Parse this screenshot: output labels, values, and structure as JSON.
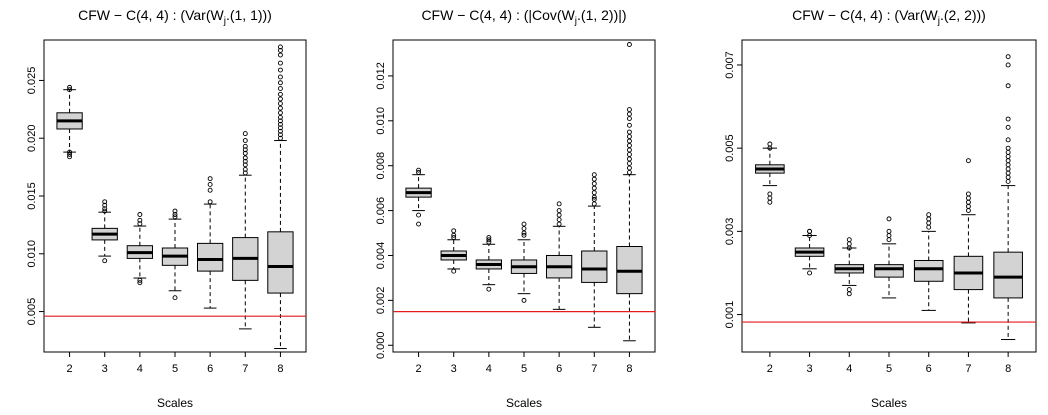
{
  "chart_data": [
    {
      "type": "boxplot",
      "title_parts": [
        "CFW − C(4, 4) : (Var(W",
        "j",
        ".",
        "(1, 1)))"
      ],
      "xlabel": "Scales",
      "categories": [
        "2",
        "3",
        "4",
        "5",
        "6",
        "7",
        "8"
      ],
      "ylim": [
        0.0015,
        0.0285
      ],
      "yticks": [
        0.005,
        0.01,
        0.015,
        0.02,
        0.025
      ],
      "ytick_labels": [
        "0.005",
        "0.010",
        "0.015",
        "0.020",
        "0.025"
      ],
      "reference_line": {
        "y": 0.0046,
        "color": "#e41a1c"
      },
      "boxes": [
        {
          "min": 0.0188,
          "q1": 0.0208,
          "median": 0.0215,
          "q3": 0.0222,
          "max": 0.0242,
          "outliers": [
            0.0184,
            0.0186,
            0.0188,
            0.0242,
            0.0244
          ]
        },
        {
          "min": 0.0098,
          "q1": 0.0112,
          "median": 0.0117,
          "q3": 0.0122,
          "max": 0.0136,
          "outliers": [
            0.0094,
            0.0137,
            0.0139,
            0.0142,
            0.0145
          ]
        },
        {
          "min": 0.0079,
          "q1": 0.0096,
          "median": 0.0101,
          "q3": 0.0107,
          "max": 0.0124,
          "outliers": [
            0.0075,
            0.0077,
            0.0126,
            0.0129,
            0.0134
          ]
        },
        {
          "min": 0.0068,
          "q1": 0.009,
          "median": 0.0098,
          "q3": 0.0105,
          "max": 0.013,
          "outliers": [
            0.0062,
            0.0132,
            0.0134,
            0.0137
          ]
        },
        {
          "min": 0.0053,
          "q1": 0.0085,
          "median": 0.0095,
          "q3": 0.0109,
          "max": 0.0143,
          "outliers": [
            0.0145,
            0.0155,
            0.016,
            0.0165
          ]
        },
        {
          "min": 0.0035,
          "q1": 0.0077,
          "median": 0.0096,
          "q3": 0.0114,
          "max": 0.0168,
          "outliers": [
            0.017,
            0.0173,
            0.0177,
            0.018,
            0.0183,
            0.0187,
            0.019,
            0.0193,
            0.0198,
            0.0204
          ]
        },
        {
          "min": 0.0018,
          "q1": 0.0066,
          "median": 0.0089,
          "q3": 0.0119,
          "max": 0.0198,
          "outliers": [
            0.02,
            0.0203,
            0.0206,
            0.0209,
            0.0212,
            0.0215,
            0.0218,
            0.0222,
            0.0226,
            0.023,
            0.0234,
            0.0238,
            0.0243,
            0.0248,
            0.0253,
            0.0259,
            0.0265,
            0.0272,
            0.0276,
            0.0279
          ]
        }
      ]
    },
    {
      "type": "boxplot",
      "title_parts": [
        "CFW − C(4, 4) : (|Cov(W",
        "j",
        ".",
        "(1, 2))|)"
      ],
      "xlabel": "Scales",
      "categories": [
        "2",
        "3",
        "4",
        "5",
        "6",
        "7",
        "8"
      ],
      "ylim": [
        -0.0003,
        0.0136
      ],
      "yticks": [
        0.0,
        0.002,
        0.004,
        0.006,
        0.008,
        0.01,
        0.012
      ],
      "ytick_labels": [
        "0.000",
        "0.002",
        "0.004",
        "0.006",
        "0.008",
        "0.010",
        "0.012"
      ],
      "reference_line": {
        "y": 0.0015,
        "color": "#e41a1c"
      },
      "boxes": [
        {
          "min": 0.006,
          "q1": 0.0066,
          "median": 0.0068,
          "q3": 0.007,
          "max": 0.0076,
          "outliers": [
            0.0054,
            0.0058,
            0.0077,
            0.0078
          ]
        },
        {
          "min": 0.0034,
          "q1": 0.0038,
          "median": 0.004,
          "q3": 0.0042,
          "max": 0.0047,
          "outliers": [
            0.0033,
            0.0048,
            0.0049,
            0.0051
          ]
        },
        {
          "min": 0.0027,
          "q1": 0.0034,
          "median": 0.0036,
          "q3": 0.0038,
          "max": 0.0045,
          "outliers": [
            0.0025,
            0.0046,
            0.0047,
            0.0048
          ]
        },
        {
          "min": 0.0023,
          "q1": 0.0032,
          "median": 0.0035,
          "q3": 0.0038,
          "max": 0.0047,
          "outliers": [
            0.002,
            0.0049,
            0.005,
            0.0052,
            0.0054
          ]
        },
        {
          "min": 0.0016,
          "q1": 0.003,
          "median": 0.0035,
          "q3": 0.004,
          "max": 0.0053,
          "outliers": [
            0.0054,
            0.0056,
            0.0058,
            0.006,
            0.0063
          ]
        },
        {
          "min": 0.0008,
          "q1": 0.0028,
          "median": 0.0034,
          "q3": 0.0042,
          "max": 0.0062,
          "outliers": [
            0.0063,
            0.0065,
            0.0066,
            0.0068,
            0.007,
            0.0072,
            0.0074,
            0.0076
          ]
        },
        {
          "min": 0.0002,
          "q1": 0.0023,
          "median": 0.0033,
          "q3": 0.0044,
          "max": 0.0076,
          "outliers": [
            0.0077,
            0.0079,
            0.0081,
            0.0083,
            0.0085,
            0.0087,
            0.0089,
            0.0091,
            0.0093,
            0.0095,
            0.0098,
            0.0101,
            0.0103,
            0.0105,
            0.0134
          ]
        }
      ]
    },
    {
      "type": "boxplot",
      "title_parts": [
        "CFW − C(4, 4) : (Var(W",
        "j",
        ".",
        "(2, 2)))"
      ],
      "xlabel": "Scales",
      "categories": [
        "2",
        "3",
        "4",
        "5",
        "6",
        "7",
        "8"
      ],
      "ylim": [
        0.0001,
        0.0076
      ],
      "yticks": [
        0.001,
        0.003,
        0.005,
        0.007
      ],
      "ytick_labels": [
        "0.001",
        "0.003",
        "0.005",
        "0.007"
      ],
      "reference_line": {
        "y": 0.00082,
        "color": "#e41a1c"
      },
      "boxes": [
        {
          "min": 0.0041,
          "q1": 0.0044,
          "median": 0.0045,
          "q3": 0.0046,
          "max": 0.005,
          "outliers": [
            0.0037,
            0.0038,
            0.0039,
            0.005,
            0.0051
          ]
        },
        {
          "min": 0.0021,
          "q1": 0.0024,
          "median": 0.0025,
          "q3": 0.0026,
          "max": 0.0029,
          "outliers": [
            0.002,
            0.0029,
            0.003,
            0.003
          ]
        },
        {
          "min": 0.0017,
          "q1": 0.002,
          "median": 0.0021,
          "q3": 0.0022,
          "max": 0.0026,
          "outliers": [
            0.0015,
            0.0016,
            0.0026,
            0.0027,
            0.0028
          ]
        },
        {
          "min": 0.0014,
          "q1": 0.0019,
          "median": 0.0021,
          "q3": 0.0022,
          "max": 0.0027,
          "outliers": [
            0.0028,
            0.0029,
            0.003,
            0.0033
          ]
        },
        {
          "min": 0.0011,
          "q1": 0.0018,
          "median": 0.0021,
          "q3": 0.0023,
          "max": 0.003,
          "outliers": [
            0.0031,
            0.0032,
            0.0033,
            0.0034
          ]
        },
        {
          "min": 0.0008,
          "q1": 0.0016,
          "median": 0.002,
          "q3": 0.0024,
          "max": 0.0034,
          "outliers": [
            0.0035,
            0.0036,
            0.0037,
            0.0038,
            0.0039,
            0.0047
          ]
        },
        {
          "min": 0.0004,
          "q1": 0.0014,
          "median": 0.0019,
          "q3": 0.0025,
          "max": 0.0041,
          "outliers": [
            0.0042,
            0.0043,
            0.0044,
            0.0045,
            0.0046,
            0.0047,
            0.0048,
            0.0049,
            0.005,
            0.0052,
            0.0055,
            0.0057,
            0.0065,
            0.007,
            0.0072
          ]
        }
      ]
    }
  ]
}
